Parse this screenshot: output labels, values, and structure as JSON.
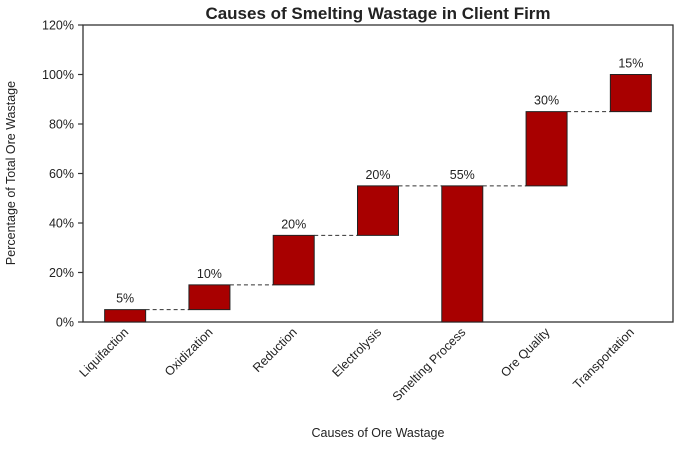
{
  "chart_data": {
    "type": "waterfall",
    "title": "Causes of Smelting Wastage in Client Firm",
    "xlabel": "Causes of Ore Wastage",
    "ylabel": "Percentage of Total Ore Wastage",
    "ylim": [
      0,
      120
    ],
    "yticks": [
      "0%",
      "20%",
      "40%",
      "60%",
      "80%",
      "100%",
      "120%"
    ],
    "categories": [
      "Liquifaction",
      "Oxidization",
      "Reduction",
      "Electrolysis",
      "Smelting Process",
      "Ore Quality",
      "Transportation"
    ],
    "bars": [
      {
        "start": 0,
        "end": 5,
        "label": "5%"
      },
      {
        "start": 5,
        "end": 15,
        "label": "10%"
      },
      {
        "start": 15,
        "end": 35,
        "label": "20%"
      },
      {
        "start": 35,
        "end": 55,
        "label": "20%"
      },
      {
        "start": 0,
        "end": 55,
        "label": "55%"
      },
      {
        "start": 55,
        "end": 85,
        "label": "30%"
      },
      {
        "start": 85,
        "end": 100,
        "label": "15%"
      }
    ],
    "bar_color": "#A80000",
    "connectors": "dashed",
    "grid": false,
    "legend": "none"
  }
}
